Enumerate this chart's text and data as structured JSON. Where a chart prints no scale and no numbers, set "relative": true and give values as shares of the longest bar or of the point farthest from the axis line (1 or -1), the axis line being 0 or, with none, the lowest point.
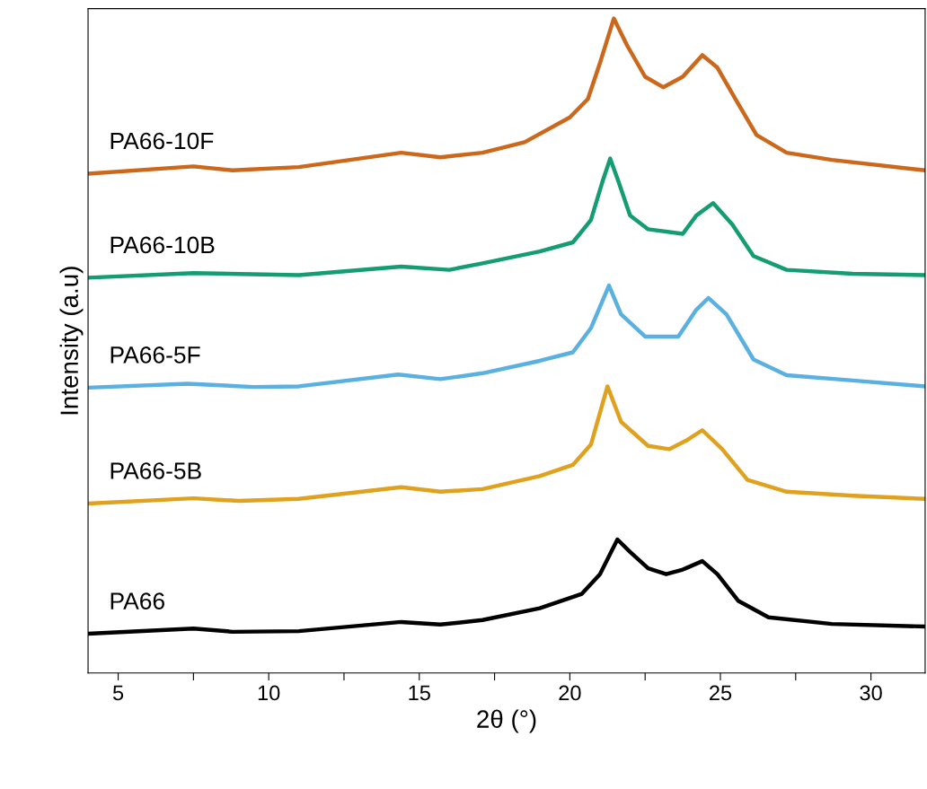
{
  "chart_data": {
    "type": "line",
    "relative": true,
    "xlabel": "2θ (°)",
    "ylabel": "Intensity (a.u)",
    "xlim": [
      4.0,
      31.8
    ],
    "xticks": [
      5,
      {
        "value": 7.5,
        "label": null
      },
      10,
      {
        "value": 12.5,
        "label": null
      },
      15,
      {
        "value": 17.5,
        "label": null
      },
      20,
      {
        "value": 22.5,
        "label": null
      },
      25,
      {
        "value": 27.5,
        "label": null
      },
      30
    ],
    "legend": false,
    "grid": false,
    "marker": "none",
    "line_style": "solid",
    "series": [
      {
        "name": "PA66",
        "color": "#000000",
        "x": [
          4.0,
          7.5,
          8.8,
          11,
          14.4,
          15.7,
          17.1,
          19,
          20.4,
          21.0,
          21.58,
          22,
          22.6,
          23.2,
          23.75,
          24.4,
          24.9,
          25.6,
          26.6,
          28.7,
          31.8
        ],
        "values": [
          0.06,
          0.068,
          0.063,
          0.064,
          0.078,
          0.074,
          0.081,
          0.099,
          0.121,
          0.151,
          0.204,
          0.185,
          0.16,
          0.151,
          0.158,
          0.171,
          0.151,
          0.11,
          0.085,
          0.075,
          0.071
        ]
      },
      {
        "name": "PA66-5B",
        "color": "#e0a21e",
        "x": [
          4.0,
          7.5,
          9,
          11,
          14.4,
          15.7,
          17.1,
          19,
          20.1,
          20.7,
          21.25,
          21.7,
          22.6,
          23.3,
          23.9,
          24.4,
          25.06,
          25.9,
          27.2,
          29.4,
          31.8
        ],
        "values": [
          0.259,
          0.267,
          0.263,
          0.266,
          0.284,
          0.277,
          0.281,
          0.301,
          0.318,
          0.349,
          0.438,
          0.384,
          0.347,
          0.342,
          0.356,
          0.371,
          0.342,
          0.295,
          0.277,
          0.271,
          0.266
        ]
      },
      {
        "name": "PA66-5F",
        "color": "#5bb0e2",
        "x": [
          4.0,
          7.3,
          9.5,
          11,
          14.3,
          15.7,
          17.1,
          19,
          20.1,
          20.7,
          21.3,
          21.7,
          22.5,
          23.6,
          24.2,
          24.6,
          25.2,
          26.1,
          27.2,
          29.4,
          31.8
        ],
        "values": [
          0.436,
          0.442,
          0.437,
          0.438,
          0.456,
          0.449,
          0.458,
          0.477,
          0.49,
          0.527,
          0.592,
          0.548,
          0.514,
          0.514,
          0.555,
          0.573,
          0.548,
          0.479,
          0.455,
          0.447,
          0.438
        ]
      },
      {
        "name": "PA66-10B",
        "color": "#149c72",
        "x": [
          4.0,
          7.5,
          11,
          14.4,
          16,
          17.1,
          19,
          20.1,
          20.7,
          21.1,
          21.34,
          21.6,
          22,
          22.6,
          23.75,
          24.2,
          24.76,
          25.4,
          26.1,
          27.2,
          29.4,
          31.8
        ],
        "values": [
          0.604,
          0.611,
          0.608,
          0.621,
          0.616,
          0.626,
          0.644,
          0.658,
          0.692,
          0.753,
          0.786,
          0.753,
          0.699,
          0.678,
          0.671,
          0.699,
          0.718,
          0.685,
          0.637,
          0.616,
          0.61,
          0.608
        ]
      },
      {
        "name": "PA66-10F",
        "color": "#cc681c",
        "x": [
          4.0,
          7.5,
          8.8,
          11,
          14.4,
          15.7,
          17.1,
          18.5,
          20,
          20.6,
          21,
          21.46,
          21.9,
          22.5,
          23.1,
          23.75,
          24.4,
          24.9,
          25.5,
          26.2,
          27.2,
          28.7,
          31.8
        ],
        "values": [
          0.763,
          0.774,
          0.768,
          0.773,
          0.795,
          0.788,
          0.795,
          0.811,
          0.849,
          0.877,
          0.932,
          1.0,
          0.959,
          0.911,
          0.895,
          0.911,
          0.944,
          0.925,
          0.877,
          0.822,
          0.795,
          0.784,
          0.768
        ]
      }
    ]
  }
}
